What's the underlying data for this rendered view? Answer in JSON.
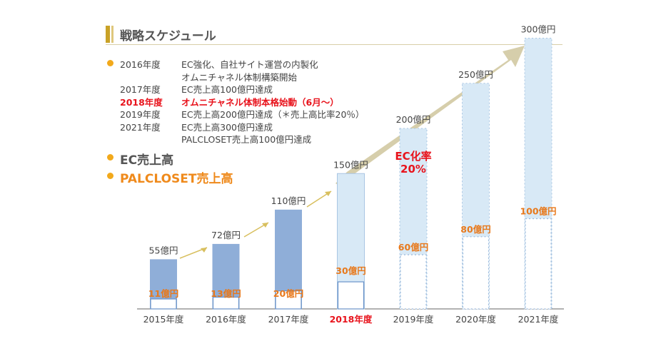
{
  "title": "戦略スケジュール",
  "schedule": [
    {
      "year": "2016年度",
      "text": "EC強化、自社サイト運営の内製化",
      "highlight": false,
      "bullet": true
    },
    {
      "year": "",
      "text": "オムニチャネル体制構築開始",
      "highlight": false,
      "bullet": false
    },
    {
      "year": "2017年度",
      "text": "EC売上高100億円達成",
      "highlight": false,
      "bullet": false
    },
    {
      "year": "2018年度",
      "text": "オムニチャネル体制本格始動（6月～）",
      "highlight": true,
      "bullet": false
    },
    {
      "year": "2019年度",
      "text": "EC売上高200億円達成（＊売上高比率20％）",
      "highlight": false,
      "bullet": false
    },
    {
      "year": "2021年度",
      "text": "EC売上高300億円達成",
      "highlight": false,
      "bullet": false
    },
    {
      "year": "",
      "text": "PALCLOSET売上高100億円達成",
      "highlight": false,
      "bullet": false
    }
  ],
  "legend": {
    "ec": "EC売上高",
    "palcloset": "PALCLOSET売上高"
  },
  "annotation": {
    "line1": "EC化率",
    "line2": "20%"
  },
  "colors": {
    "actual": "#8faed8",
    "plan": "#d8e9f6",
    "palcloset_text": "#e8791c",
    "highlight": "#e8131c",
    "arrow": "#c8bd8f"
  },
  "chart_data": {
    "type": "bar",
    "title": "",
    "xlabel": "",
    "ylabel": "",
    "categories": [
      "2015年度",
      "2016年度",
      "2017年度",
      "2018年度",
      "2019年度",
      "2020年度",
      "2021年度"
    ],
    "highlight_category": "2018年度",
    "ylim": [
      0,
      300
    ],
    "series": [
      {
        "name": "EC売上高",
        "values": [
          55,
          72,
          110,
          150,
          200,
          250,
          300
        ],
        "labels": [
          "55億円",
          "72億円",
          "110億円",
          "150億円",
          "200億円",
          "250億円",
          "300億円"
        ]
      },
      {
        "name": "PALCLOSET売上高",
        "values": [
          11,
          13,
          20,
          30,
          60,
          80,
          100
        ],
        "labels": [
          "11億円",
          "13億円",
          "20億円",
          "30億円",
          "60億円",
          "80億円",
          "100億円"
        ]
      }
    ],
    "status": [
      "actual",
      "actual",
      "actual",
      "plan",
      "plan",
      "plan",
      "plan"
    ],
    "grid": false
  }
}
